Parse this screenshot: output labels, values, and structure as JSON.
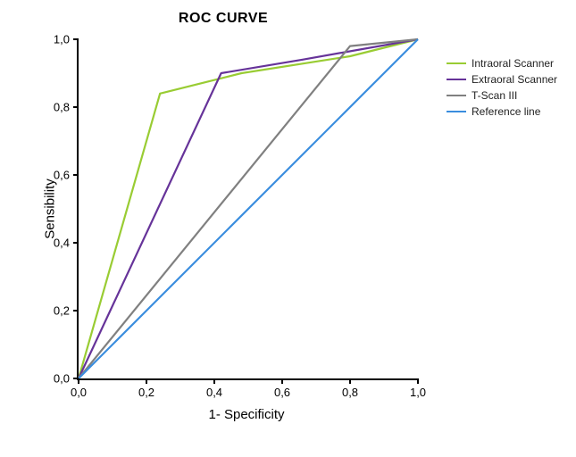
{
  "chart": {
    "type": "line",
    "title": "ROC CURVE",
    "title_fontsize": 16,
    "title_fontweight": "bold",
    "background_color": "#ffffff",
    "axis_color": "#000000",
    "axis_linewidth": 2,
    "xlim": [
      0.0,
      1.0
    ],
    "ylim": [
      0.0,
      1.0
    ],
    "xtick_step": 0.2,
    "ytick_step": 0.2,
    "x_ticks": [
      "0,0",
      "0,2",
      "0,4",
      "0,6",
      "0,8",
      "1,0"
    ],
    "y_ticks": [
      "0,0",
      "0,2",
      "0,4",
      "0,6",
      "0,8",
      "1,0"
    ],
    "tick_fontsize": 13,
    "xlabel": "1- Specificity",
    "ylabel": "Sensibility",
    "axis_title_fontsize": 15,
    "line_width": 2.2,
    "series": [
      {
        "name": "Intraoral Scanner",
        "color": "#99cc33",
        "points": [
          {
            "x": 0.0,
            "y": 0.0
          },
          {
            "x": 0.24,
            "y": 0.84
          },
          {
            "x": 0.48,
            "y": 0.9
          },
          {
            "x": 0.8,
            "y": 0.95
          },
          {
            "x": 1.0,
            "y": 1.0
          }
        ]
      },
      {
        "name": "Extraoral Scanner",
        "color": "#663399",
        "points": [
          {
            "x": 0.0,
            "y": 0.0
          },
          {
            "x": 0.42,
            "y": 0.9
          },
          {
            "x": 0.66,
            "y": 0.94
          },
          {
            "x": 1.0,
            "y": 1.0
          }
        ]
      },
      {
        "name": "T-Scan III",
        "color": "#808080",
        "points": [
          {
            "x": 0.0,
            "y": 0.0
          },
          {
            "x": 0.8,
            "y": 0.98
          },
          {
            "x": 1.0,
            "y": 1.0
          }
        ]
      },
      {
        "name": "Reference line",
        "color": "#3a8dde",
        "points": [
          {
            "x": 0.0,
            "y": 0.0
          },
          {
            "x": 1.0,
            "y": 1.0
          }
        ]
      }
    ],
    "legend": {
      "position": "right",
      "fontsize": 12
    }
  }
}
